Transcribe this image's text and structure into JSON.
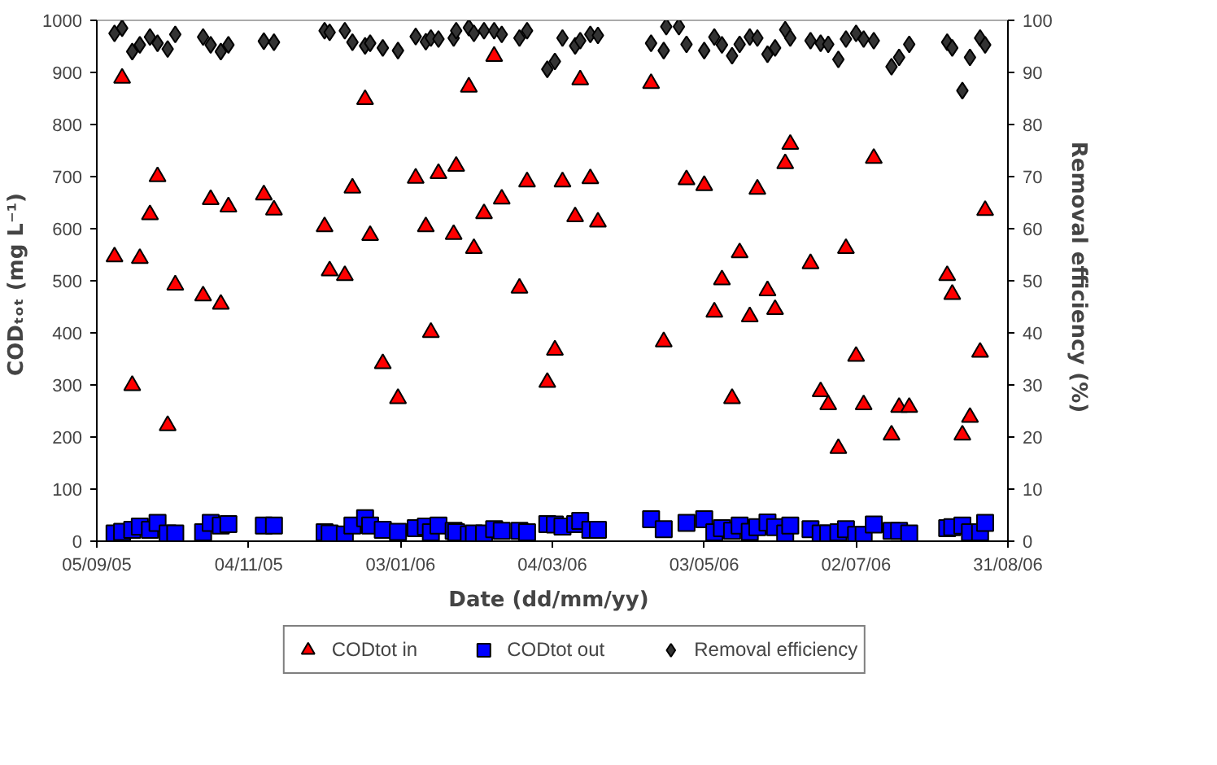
{
  "chart_data": {
    "type": "scatter",
    "xlabel": "Date  (dd/mm/yy)",
    "ylabel": "CODₜₒₜ  (mg L⁻¹)",
    "y2label": "Removal efficiency  (%)",
    "x": [
      "2005-09-12",
      "2005-09-15",
      "2005-09-19",
      "2005-09-22",
      "2005-09-26",
      "2005-09-29",
      "2005-10-03",
      "2005-10-06",
      "2005-10-17",
      "2005-10-20",
      "2005-10-24",
      "2005-10-27",
      "2005-11-10",
      "2005-11-14",
      "2005-12-04",
      "2005-12-06",
      "2005-12-12",
      "2005-12-15",
      "2005-12-20",
      "2005-12-22",
      "2005-12-27",
      "2006-01-02",
      "2006-01-09",
      "2006-01-13",
      "2006-01-15",
      "2006-01-18",
      "2006-01-24",
      "2006-01-25",
      "2006-01-30",
      "2006-02-01",
      "2006-02-05",
      "2006-02-09",
      "2006-02-12",
      "2006-02-19",
      "2006-02-22",
      "2006-03-02",
      "2006-03-05",
      "2006-03-08",
      "2006-03-13",
      "2006-03-15",
      "2006-03-19",
      "2006-03-22",
      "2006-04-12",
      "2006-04-17",
      "2006-04-26",
      "2006-05-03",
      "2006-05-07",
      "2006-05-10",
      "2006-05-14",
      "2006-05-17",
      "2006-05-21",
      "2006-05-24",
      "2006-05-28",
      "2006-05-31",
      "2006-06-04",
      "2006-06-06",
      "2006-06-14",
      "2006-06-18",
      "2006-06-21",
      "2006-06-25",
      "2006-06-28",
      "2006-07-02",
      "2006-07-05",
      "2006-07-09",
      "2006-07-16",
      "2006-07-19",
      "2006-07-23",
      "2006-08-07",
      "2006-08-09",
      "2006-08-13",
      "2006-08-16",
      "2006-08-20",
      "2006-08-22"
    ],
    "series": [
      {
        "name": "CODtot in",
        "color": "#ff0000",
        "marker": "triangle",
        "values": [
          546,
          889,
          299,
          543,
          627,
          700,
          222,
          492,
          471,
          656,
          455,
          642,
          665,
          636,
          604,
          519,
          510,
          678,
          848,
          587,
          341,
          274,
          697,
          604,
          401,
          706,
          589,
          720,
          872,
          562,
          629,
          931,
          657,
          486,
          690,
          305,
          367,
          690,
          623,
          886,
          696,
          613,
          879,
          383,
          694,
          683,
          440,
          502,
          274,
          554,
          431,
          676,
          481,
          445,
          725,
          762,
          533,
          287,
          262,
          178,
          562,
          355,
          262,
          735,
          204,
          257,
          257,
          510,
          474,
          204,
          238,
          363,
          635
        ]
      },
      {
        "name": "CODtot out",
        "color": "#0000ff",
        "marker": "square",
        "values": [
          15,
          18,
          22,
          28,
          22,
          35,
          15,
          15,
          17,
          35,
          30,
          33,
          30,
          30,
          17,
          15,
          13,
          30,
          44,
          30,
          22,
          18,
          25,
          28,
          17,
          30,
          20,
          17,
          13,
          15,
          15,
          23,
          20,
          20,
          17,
          33,
          32,
          28,
          33,
          39,
          22,
          22,
          42,
          23,
          35,
          42,
          17,
          25,
          20,
          30,
          18,
          27,
          36,
          27,
          15,
          30,
          23,
          15,
          15,
          17,
          23,
          12,
          12,
          32,
          20,
          20,
          15,
          25,
          27,
          30,
          17,
          17,
          35
        ]
      },
      {
        "name": "Removal efficiency",
        "color": "#333333",
        "marker": "diamond",
        "axis": "y2",
        "x": [
          "2005-09-12",
          "2005-09-15",
          "2005-09-19",
          "2005-09-22",
          "2005-09-26",
          "2005-09-29",
          "2005-10-03",
          "2005-10-06",
          "2005-10-17",
          "2005-10-20",
          "2005-10-24",
          "2005-10-27",
          "2005-11-10",
          "2005-11-14",
          "2005-12-04",
          "2005-12-06",
          "2005-12-12",
          "2005-12-15",
          "2005-12-20",
          "2005-12-22",
          "2005-12-27",
          "2006-01-02",
          "2006-01-09",
          "2006-01-13",
          "2006-01-15",
          "2006-01-18",
          "2006-01-24",
          "2006-01-25",
          "2006-01-30",
          "2006-02-01",
          "2006-02-05",
          "2006-02-09",
          "2006-02-12",
          "2006-02-19",
          "2006-02-22",
          "2006-03-02",
          "2006-03-05",
          "2006-03-08",
          "2006-03-13",
          "2006-03-15",
          "2006-03-19",
          "2006-03-22",
          "2006-04-12",
          "2006-04-17",
          "2006-04-18",
          "2006-04-23",
          "2006-04-26",
          "2006-05-03",
          "2006-05-07",
          "2006-05-10",
          "2006-05-14",
          "2006-05-17",
          "2006-05-21",
          "2006-05-24",
          "2006-05-28",
          "2006-05-31",
          "2006-06-04",
          "2006-06-06",
          "2006-06-14",
          "2006-06-18",
          "2006-06-21",
          "2006-06-25",
          "2006-06-28",
          "2006-07-02",
          "2006-07-05",
          "2006-07-09",
          "2006-07-16",
          "2006-07-19",
          "2006-07-23",
          "2006-08-07",
          "2006-08-09",
          "2006-08-13",
          "2006-08-16",
          "2006-08-20",
          "2006-08-22"
        ],
        "values": [
          97.5,
          98.5,
          94,
          95.3,
          96.8,
          95.6,
          94.5,
          97.3,
          96.8,
          95.3,
          94,
          95.3,
          96,
          95.8,
          98,
          97.7,
          98,
          95.8,
          95.1,
          95.6,
          94.7,
          94.2,
          96.9,
          95.9,
          96.6,
          96.4,
          96.6,
          98,
          98.6,
          97.5,
          98,
          98,
          97.3,
          96.6,
          98,
          90.6,
          92.1,
          96.6,
          95.1,
          96.1,
          97.3,
          97.1,
          95.6,
          94.2,
          98.8,
          98.8,
          95.4,
          94.2,
          96.8,
          95.3,
          93.2,
          95.4,
          96.8,
          96.6,
          93.5,
          94.7,
          98.2,
          96.6,
          96.1,
          95.6,
          95.4,
          92.5,
          96.4,
          97.5,
          96.4,
          96.1,
          91.1,
          92.9,
          95.4,
          95.8,
          94.7,
          86.5,
          92.9,
          96.6,
          95.3
        ]
      }
    ],
    "xlim": [
      "2005-09-05",
      "2006-08-31"
    ],
    "xticks": [
      {
        "value": "2005-09-05",
        "label": "05/09/05"
      },
      {
        "value": "2005-11-04",
        "label": "04/11/05"
      },
      {
        "value": "2006-01-03",
        "label": "03/01/06"
      },
      {
        "value": "2006-03-04",
        "label": "04/03/06"
      },
      {
        "value": "2006-05-03",
        "label": "03/05/06"
      },
      {
        "value": "2006-07-02",
        "label": "02/07/06"
      },
      {
        "value": "2006-08-31",
        "label": "31/08/06"
      }
    ],
    "ylim": [
      0,
      1000
    ],
    "yticks": [
      0,
      100,
      200,
      300,
      400,
      500,
      600,
      700,
      800,
      900,
      1000
    ],
    "y2lim": [
      0,
      100
    ],
    "y2ticks": [
      0,
      10,
      20,
      30,
      40,
      50,
      60,
      70,
      80,
      90,
      100
    ],
    "grid": false,
    "legend": "bottom"
  }
}
